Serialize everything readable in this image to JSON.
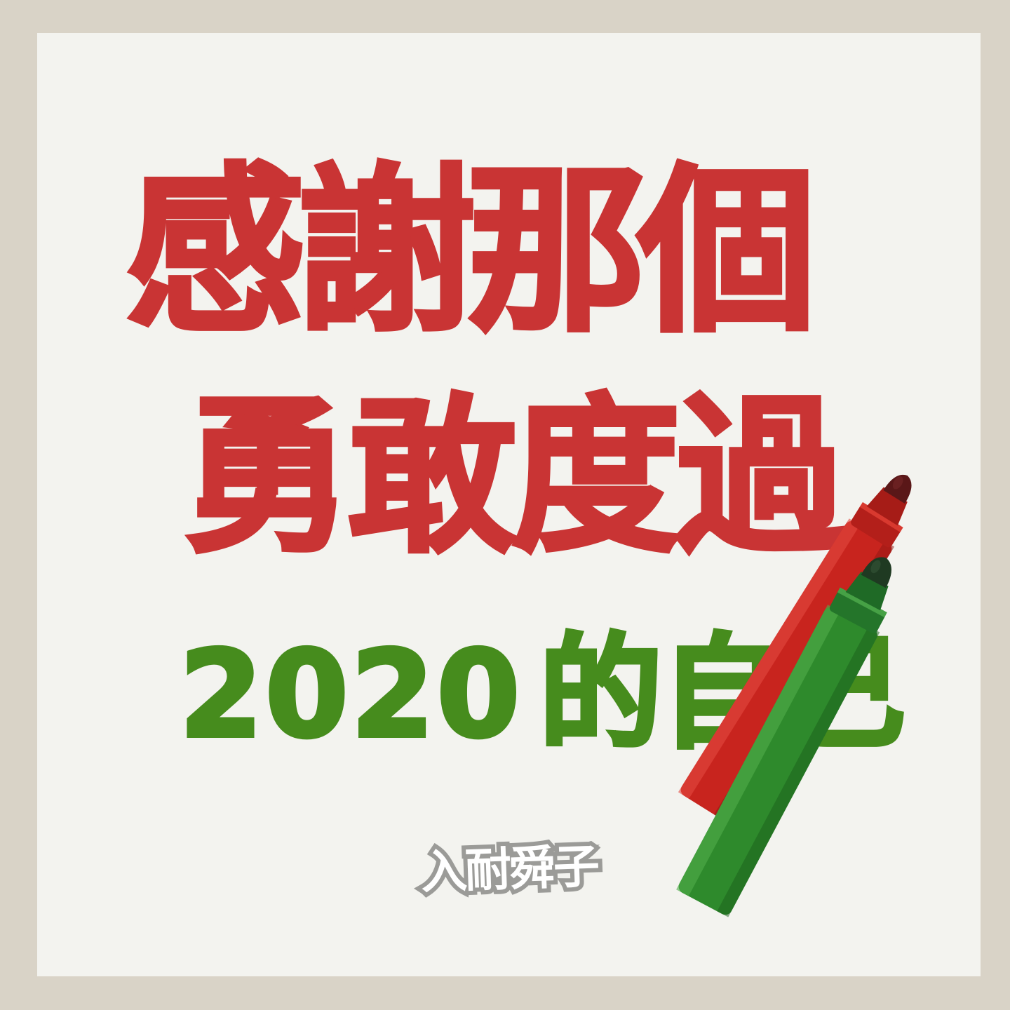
{
  "headline": {
    "line1": "感謝那個",
    "line2": "勇敢度過",
    "line3_year": "2020",
    "line3_rest": "的自己"
  },
  "brand": {
    "logo_text": "入耐舜子"
  },
  "colors": {
    "background": "#d9d3c7",
    "card": "#f3f3ef",
    "red_ink": "#c93434",
    "green_ink": "#468c1d",
    "logo_outline": "#9b9b98",
    "red_marker": "#c8241e",
    "green_marker": "#2e8a2c"
  },
  "decorations": {
    "markers": [
      "red-marker-icon",
      "green-marker-icon"
    ]
  }
}
